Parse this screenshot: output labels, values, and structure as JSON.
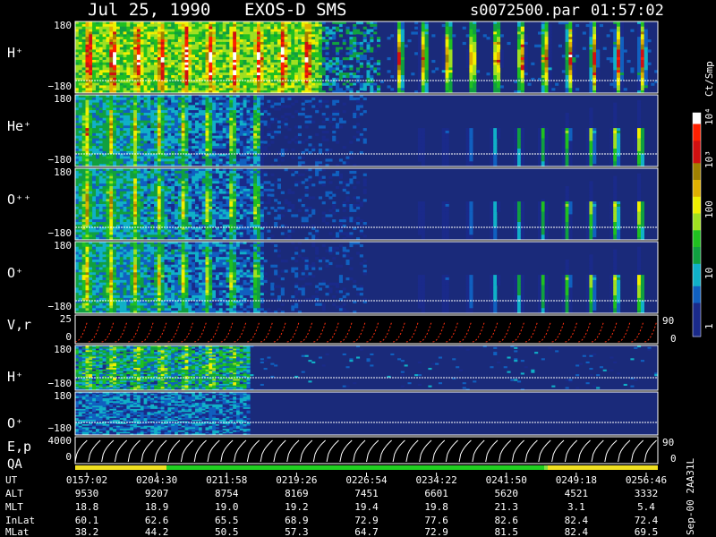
{
  "header": {
    "date": "Jul 25, 1990",
    "instrument": "EXOS-D SMS",
    "file": "s0072500.par",
    "time": "01:57:02"
  },
  "colors": {
    "background": "#000000",
    "panel_background": "#1a2a7a",
    "trace_line": "#ffffff",
    "vr_marks": "#ff3010",
    "qa_good": "#20d020",
    "qa_caution": "#f0e020"
  },
  "chart_data": {
    "type": "heatmap",
    "title": "Jul 25, 1990   EXOS-D SMS",
    "colorbar": {
      "label": "Ct/Smp",
      "scale": "log",
      "range": [
        1,
        10000
      ],
      "ticks": [
        "1",
        "10",
        "100",
        "10³",
        "10⁴"
      ]
    },
    "panels": [
      {
        "label": "H⁺",
        "ylim": [
          -180,
          180
        ],
        "y_ticks": [
          "180",
          "−180"
        ],
        "kind": "spectrogram",
        "color_range": [
          1,
          10000
        ]
      },
      {
        "label": "He⁺",
        "ylim": [
          -180,
          180
        ],
        "y_ticks": [
          "180",
          "−180"
        ],
        "kind": "spectrogram",
        "color_range": [
          1,
          10000
        ]
      },
      {
        "label": "O⁺⁺",
        "ylim": [
          -180,
          180
        ],
        "y_ticks": [
          "180",
          "−180"
        ],
        "kind": "spectrogram",
        "color_range": [
          1,
          10000
        ]
      },
      {
        "label": "O⁺",
        "ylim": [
          -180,
          180
        ],
        "y_ticks": [
          "180",
          "−180"
        ],
        "kind": "spectrogram",
        "color_range": [
          1,
          10000
        ]
      },
      {
        "label": "V,r",
        "ylim": [
          0,
          25
        ],
        "y_ticks": [
          "25",
          "0"
        ],
        "kind": "sweep",
        "right_ticks": [
          "90",
          "0"
        ]
      },
      {
        "label": "H⁺",
        "ylim": [
          -180,
          180
        ],
        "y_ticks": [
          "180",
          "−180"
        ],
        "kind": "spectrogram",
        "color_range": [
          1,
          10000
        ]
      },
      {
        "label": "O⁺",
        "ylim": [
          -180,
          180
        ],
        "y_ticks": [
          "180",
          "−180"
        ],
        "kind": "spectrogram",
        "color_range": [
          1,
          10000
        ]
      },
      {
        "label": "E,p",
        "ylim": [
          0,
          4000
        ],
        "y_ticks": [
          "4000",
          "0"
        ],
        "kind": "sweep",
        "right_ticks": [
          "90",
          "0"
        ]
      }
    ],
    "qa": {
      "label": "QA",
      "segments": [
        {
          "from": "0157:02",
          "to": "0207:00",
          "status": "caution"
        },
        {
          "from": "0207:00",
          "to": "0240:30",
          "status": "good"
        },
        {
          "from": "0240:30",
          "to": "0246:50",
          "status": "good-light"
        },
        {
          "from": "0246:50",
          "to": "0256:46",
          "status": "caution"
        }
      ]
    },
    "time_axis": {
      "row_labels": [
        "UT",
        "ALT",
        "MLT",
        "InLat",
        "MLat"
      ],
      "columns": [
        {
          "UT": "0157:02",
          "ALT": "9530",
          "MLT": "18.8",
          "InLat": "60.1",
          "MLat": "38.2"
        },
        {
          "UT": "0204:30",
          "ALT": "9207",
          "MLT": "18.9",
          "InLat": "62.6",
          "MLat": "44.2"
        },
        {
          "UT": "0211:58",
          "ALT": "8754",
          "MLT": "19.0",
          "InLat": "65.5",
          "MLat": "50.5"
        },
        {
          "UT": "0219:26",
          "ALT": "8169",
          "MLT": "19.2",
          "InLat": "68.9",
          "MLat": "57.3"
        },
        {
          "UT": "0226:54",
          "ALT": "7451",
          "MLT": "19.4",
          "InLat": "72.9",
          "MLat": "64.7"
        },
        {
          "UT": "0234:22",
          "ALT": "6601",
          "MLT": "19.8",
          "InLat": "77.6",
          "MLat": "72.9"
        },
        {
          "UT": "0241:50",
          "ALT": "5620",
          "MLT": "21.3",
          "InLat": "82.6",
          "MLat": "81.5"
        },
        {
          "UT": "0249:18",
          "ALT": "4521",
          "MLT": "3.1",
          "InLat": "82.4",
          "MLat": "82.4"
        },
        {
          "UT": "0256:46",
          "ALT": "3332",
          "MLT": "5.4",
          "InLat": "72.4",
          "MLat": "69.5"
        }
      ]
    },
    "footer_note": "Sep-00 2AA31L"
  }
}
